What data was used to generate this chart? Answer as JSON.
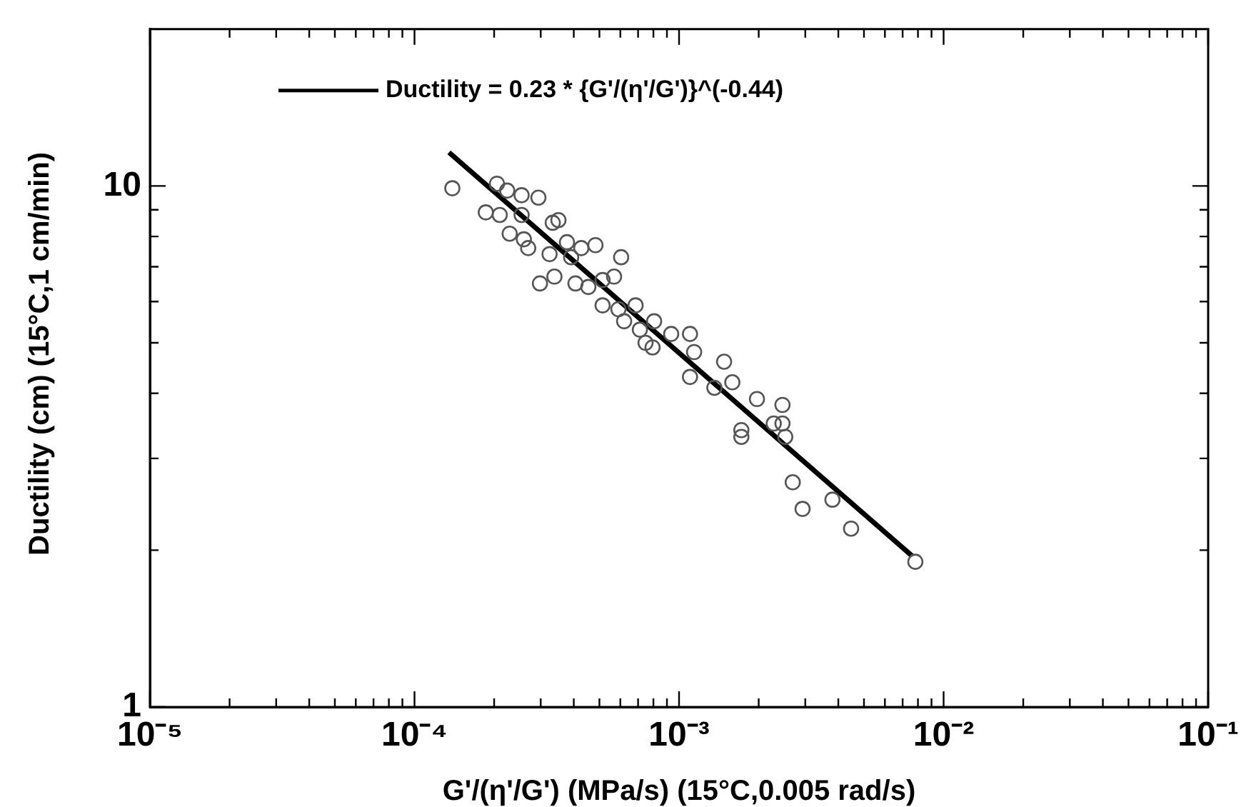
{
  "chart_data": {
    "type": "scatter",
    "xlabel": "G'/(η'/G') (MPa/s) (15°C,0.005 rad/s)",
    "ylabel": "Ductility (cm) (15°C,1 cm/min)",
    "log": "xy",
    "grid": false,
    "legend": "top left",
    "xlim": [
      1e-05,
      0.1
    ],
    "ylim": [
      1,
      20
    ],
    "xticks": [
      {
        "value": 1e-05,
        "label": "10⁻⁵"
      },
      {
        "value": 2e-05,
        "label": null
      },
      {
        "value": 3e-05,
        "label": null
      },
      {
        "value": 4e-05,
        "label": null
      },
      {
        "value": 5e-05,
        "label": null
      },
      {
        "value": 6e-05,
        "label": null
      },
      {
        "value": 7e-05,
        "label": null
      },
      {
        "value": 8e-05,
        "label": null
      },
      {
        "value": 9e-05,
        "label": null
      },
      {
        "value": 0.0001,
        "label": "10⁻⁴"
      },
      {
        "value": 0.0002,
        "label": null
      },
      {
        "value": 0.0003,
        "label": null
      },
      {
        "value": 0.0004,
        "label": null
      },
      {
        "value": 0.0005,
        "label": null
      },
      {
        "value": 0.0006,
        "label": null
      },
      {
        "value": 0.0007,
        "label": null
      },
      {
        "value": 0.0008,
        "label": null
      },
      {
        "value": 0.0009,
        "label": null
      },
      {
        "value": 0.001,
        "label": "10⁻³"
      },
      {
        "value": 0.002,
        "label": null
      },
      {
        "value": 0.003,
        "label": null
      },
      {
        "value": 0.004,
        "label": null
      },
      {
        "value": 0.005,
        "label": null
      },
      {
        "value": 0.006,
        "label": null
      },
      {
        "value": 0.007,
        "label": null
      },
      {
        "value": 0.008,
        "label": null
      },
      {
        "value": 0.009,
        "label": null
      },
      {
        "value": 0.01,
        "label": "10⁻²"
      },
      {
        "value": 0.02,
        "label": null
      },
      {
        "value": 0.03,
        "label": null
      },
      {
        "value": 0.04,
        "label": null
      },
      {
        "value": 0.05,
        "label": null
      },
      {
        "value": 0.06,
        "label": null
      },
      {
        "value": 0.07,
        "label": null
      },
      {
        "value": 0.08,
        "label": null
      },
      {
        "value": 0.09,
        "label": null
      },
      {
        "value": 0.1,
        "label": "10⁻¹"
      }
    ],
    "yticks": [
      1,
      {
        "value": 2,
        "label": null
      },
      {
        "value": 3,
        "label": null
      },
      {
        "value": 4,
        "label": null
      },
      {
        "value": 5,
        "label": null
      },
      {
        "value": 6,
        "label": null
      },
      {
        "value": 7,
        "label": null
      },
      {
        "value": 8,
        "label": null
      },
      {
        "value": 9,
        "label": null
      },
      10
    ],
    "series": [
      {
        "type": "scatter",
        "color": "#555555",
        "marker": "circle",
        "x": [
          0.000139,
          0.000205,
          0.000224,
          0.000254,
          0.000294,
          0.000186,
          0.00021,
          0.000254,
          0.000229,
          0.000259,
          0.000269,
          0.000333,
          0.00035,
          0.000377,
          0.000427,
          0.000483,
          0.000324,
          0.000391,
          0.000604,
          0.000298,
          0.000338,
          0.000406,
          0.000454,
          0.000514,
          0.000568,
          0.000514,
          0.00059,
          0.000685,
          0.00062,
          0.000711,
          0.000805,
          0.000934,
          0.0011,
          0.000747,
          0.000794,
          0.00114,
          0.00148,
          0.0011,
          0.00136,
          0.00159,
          0.00197,
          0.00246,
          0.00228,
          0.00246,
          0.00252,
          0.00172,
          0.00172,
          0.00269,
          0.00293,
          0.0038,
          0.00447,
          0.00782
        ],
        "values": [
          9.9,
          10.1,
          9.8,
          9.6,
          9.5,
          8.9,
          8.8,
          8.8,
          8.1,
          7.9,
          7.6,
          8.5,
          8.6,
          7.8,
          7.6,
          7.7,
          7.4,
          7.3,
          7.3,
          6.5,
          6.7,
          6.5,
          6.4,
          6.6,
          6.7,
          5.9,
          5.8,
          5.9,
          5.5,
          5.3,
          5.5,
          5.2,
          5.2,
          5.0,
          4.9,
          4.8,
          4.6,
          4.3,
          4.1,
          4.2,
          3.9,
          3.8,
          3.5,
          3.5,
          3.3,
          3.4,
          3.3,
          2.7,
          2.4,
          2.5,
          2.2,
          1.9
        ]
      },
      {
        "type": "line",
        "name": "Ductility = 0.23 * {G'/(η'/G')}^(-0.44)",
        "color": "#000000",
        "marker": "none",
        "line_style": "solid",
        "x": [
          0.000135,
          0.0076
        ],
        "values": [
          11.6,
          1.95
        ]
      }
    ]
  }
}
